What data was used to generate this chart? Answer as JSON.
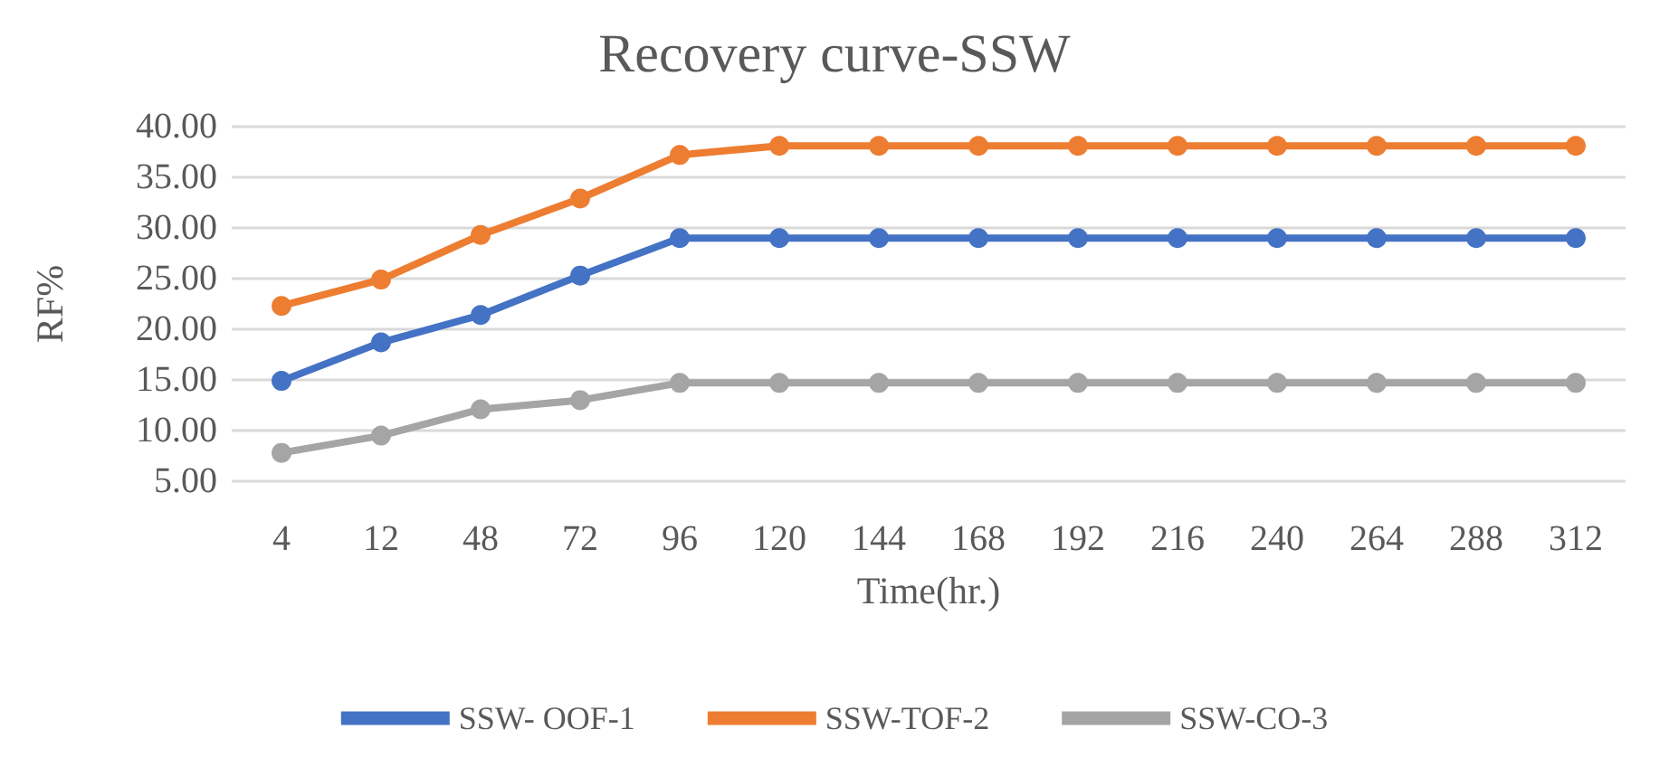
{
  "chart_data": {
    "type": "line",
    "title": "Recovery curve-SSW",
    "xlabel": "Time(hr.)",
    "ylabel": "RF%",
    "categories": [
      "4",
      "12",
      "48",
      "72",
      "96",
      "120",
      "144",
      "168",
      "192",
      "216",
      "240",
      "264",
      "288",
      "312"
    ],
    "series": [
      {
        "name": "SSW- OOF-1",
        "color": "#4472c4",
        "values": [
          14.9,
          18.7,
          21.4,
          25.3,
          29.0,
          29.0,
          29.0,
          29.0,
          29.0,
          29.0,
          29.0,
          29.0,
          29.0,
          29.0
        ]
      },
      {
        "name": "SSW-TOF-2",
        "color": "#ed7d31",
        "values": [
          22.3,
          24.9,
          29.3,
          32.9,
          37.2,
          38.1,
          38.1,
          38.1,
          38.1,
          38.1,
          38.1,
          38.1,
          38.1,
          38.1
        ]
      },
      {
        "name": "SSW-CO-3",
        "color": "#a5a5a5",
        "values": [
          7.8,
          9.5,
          12.1,
          13.0,
          14.7,
          14.7,
          14.7,
          14.7,
          14.7,
          14.7,
          14.7,
          14.7,
          14.7,
          14.7
        ]
      }
    ],
    "ylim": [
      5,
      40
    ],
    "yticks": [
      {
        "value": 5,
        "label": "5.00"
      },
      {
        "value": 10,
        "label": "10.00"
      },
      {
        "value": 15,
        "label": "15.00"
      },
      {
        "value": 20,
        "label": "20.00"
      },
      {
        "value": 25,
        "label": "25.00"
      },
      {
        "value": 30,
        "label": "30.00"
      },
      {
        "value": 35,
        "label": "35.00"
      },
      {
        "value": 40,
        "label": "40.00"
      }
    ],
    "grid": "y",
    "legend": "bottom",
    "marker": "circle",
    "line_style": "solid"
  }
}
